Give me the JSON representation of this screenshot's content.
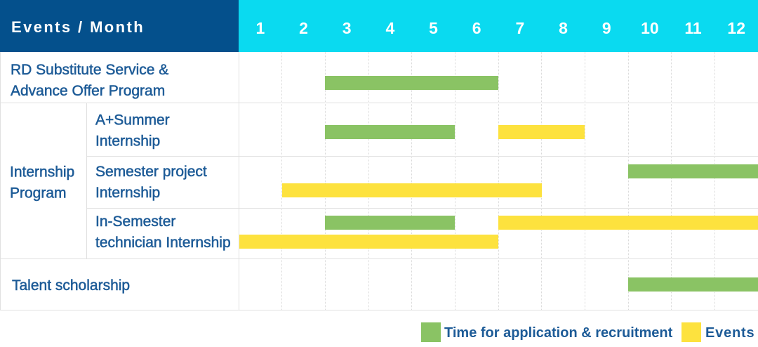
{
  "title": "Events / Month schedule table",
  "header": {
    "corner_label": "Events / Month",
    "months": [
      "1",
      "2",
      "3",
      "4",
      "5",
      "6",
      "7",
      "8",
      "9",
      "10",
      "11",
      "12"
    ]
  },
  "row_labels": {
    "rd_substitute": {
      "lines": [
        "RD Substitute Service &",
        "Advance Offer Program"
      ]
    },
    "internship_group": {
      "lines": [
        "Internship",
        "Program"
      ]
    },
    "a_plus_summer": {
      "lines": [
        "A+Summer",
        "Internship"
      ]
    },
    "semester_project": {
      "lines": [
        "Semester project",
        "Internship"
      ]
    },
    "in_semester": {
      "lines": [
        "In-Semester",
        "technician Internship"
      ]
    },
    "talent": {
      "lines": [
        "Talent scholarship"
      ]
    }
  },
  "legend": [
    {
      "label": "Time for application & recruitment",
      "series": "recruitment",
      "color": "#8AC364"
    },
    {
      "label": "Events",
      "series": "events",
      "color": "#FDE23E"
    }
  ],
  "colors": {
    "header_bg": "#04508C",
    "months_bg": "#0ADAF0",
    "text_blue": "#1D5B97",
    "recruitment_green": "#8AC364",
    "events_yellow": "#FDE23E",
    "grid_line": "#E0E0E0",
    "grid_dotted": "#D9D9D9"
  },
  "chart_data": {
    "type": "gantt",
    "x_axis": {
      "label": "Month",
      "ticks": [
        1,
        2,
        3,
        4,
        5,
        6,
        7,
        8,
        9,
        10,
        11,
        12
      ]
    },
    "series": [
      {
        "name": "Time for application & recruitment",
        "color": "#8AC364"
      },
      {
        "name": "Events",
        "color": "#FDE23E"
      }
    ],
    "rows": [
      {
        "name": "RD Substitute Service & Advance Offer Program",
        "bars": [
          {
            "series": "recruitment",
            "start_month": 3,
            "end_month": 6,
            "line": 1
          }
        ]
      },
      {
        "name": "A+Summer Internship",
        "group": "Internship Program",
        "bars": [
          {
            "series": "recruitment",
            "start_month": 3,
            "end_month": 5,
            "line": 1
          },
          {
            "series": "events",
            "start_month": 7,
            "end_month": 8,
            "line": 1
          }
        ]
      },
      {
        "name": "Semester project Internship",
        "group": "Internship Program",
        "bars": [
          {
            "series": "recruitment",
            "start_month": 10,
            "end_month": 12,
            "line": 1
          },
          {
            "series": "events",
            "start_month": 2,
            "end_month": 7,
            "line": 2
          }
        ]
      },
      {
        "name": "In-Semester technician Internship",
        "group": "Internship Program",
        "bars": [
          {
            "series": "recruitment",
            "start_month": 3,
            "end_month": 5,
            "line": 1
          },
          {
            "series": "events",
            "start_month": 7,
            "end_month": 12,
            "line": 1
          },
          {
            "series": "events",
            "start_month": 1,
            "end_month": 6,
            "line": 2
          }
        ]
      },
      {
        "name": "Talent scholarship",
        "bars": [
          {
            "series": "recruitment",
            "start_month": 10,
            "end_month": 12,
            "line": 1
          }
        ]
      }
    ]
  }
}
